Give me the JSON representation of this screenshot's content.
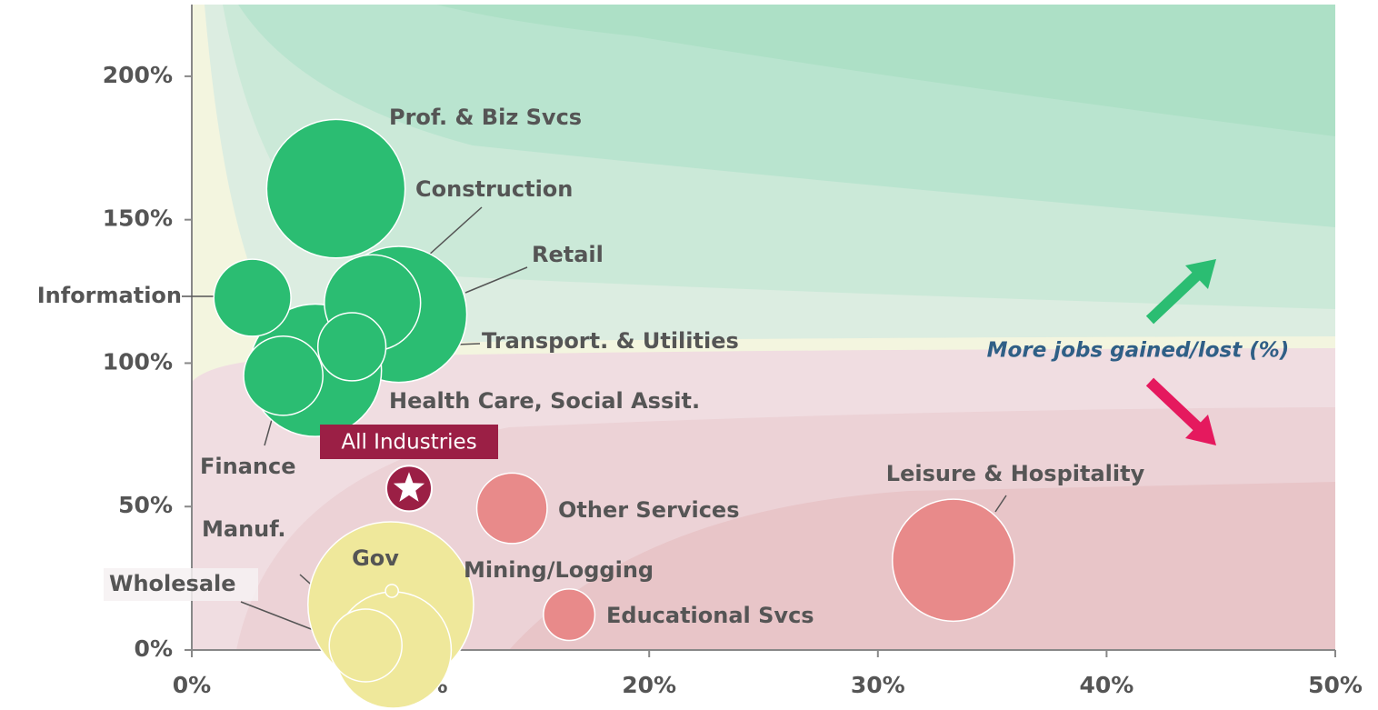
{
  "chart_data": {
    "type": "bubble",
    "xlim": [
      0,
      50
    ],
    "ylim": [
      0,
      225
    ],
    "xticks": [
      {
        "value": 0,
        "label": "0%"
      },
      {
        "value": 10,
        "label": "10%"
      },
      {
        "value": 20,
        "label": "20%"
      },
      {
        "value": 30,
        "label": "30%"
      },
      {
        "value": 40,
        "label": "40%"
      },
      {
        "value": 50,
        "label": "50%"
      }
    ],
    "yticks": [
      {
        "value": 0,
        "label": "0%"
      },
      {
        "value": 50,
        "label": "50%"
      },
      {
        "value": 100,
        "label": "100%"
      },
      {
        "value": 150,
        "label": "150%"
      },
      {
        "value": 200,
        "label": "200%"
      }
    ],
    "annotation": "More jobs gained/lost (%)",
    "points": [
      {
        "name": "Gov",
        "x": 8.7,
        "y": 15.8,
        "size": 83,
        "color": "#efe89b"
      },
      {
        "name": "Prof. & Biz Svcs",
        "x": 6.3,
        "y": 160.8,
        "size": 58,
        "color": "#2bbd72"
      },
      {
        "name": "Retail",
        "x": 9.05,
        "y": 117,
        "size": 56,
        "color": "#2bbd72"
      },
      {
        "name": "Health Care, Social Assit.",
        "x": 5.4,
        "y": 97.5,
        "size": 53,
        "color": "#2bbd72"
      },
      {
        "name": "Leisure & Hospitality",
        "x": 33.3,
        "y": 31.3,
        "size": 45,
        "color": "#e88a8a"
      },
      {
        "name": "Manuf.",
        "x": 8.8,
        "y": 0,
        "size": 41,
        "color": "#efe89b"
      },
      {
        "name": "Construction",
        "x": 7.9,
        "y": 121,
        "size": 28,
        "color": "#2bbd72"
      },
      {
        "name": "Finance",
        "x": 4.0,
        "y": 95.6,
        "size": 19,
        "color": "#2bbd72"
      },
      {
        "name": "Information",
        "x": 2.65,
        "y": 122.8,
        "size": 18,
        "color": "#2bbd72"
      },
      {
        "name": "Wholesale",
        "x": 7.6,
        "y": 1.6,
        "size": 16,
        "color": "#efe89b"
      },
      {
        "name": "Other Services",
        "x": 14.0,
        "y": 49.4,
        "size": 15,
        "color": "#e88a8a"
      },
      {
        "name": "Transport. & Utilities",
        "x": 7.0,
        "y": 105.7,
        "size": 14,
        "color": "#2bbd72"
      },
      {
        "name": "Educational Svcs",
        "x": 16.5,
        "y": 12.3,
        "size": 8,
        "color": "#e88a8a"
      },
      {
        "name": "Mining/Logging",
        "x": 8.75,
        "y": 20.6,
        "size": 0.5,
        "color": "#efe89b"
      }
    ],
    "highlight": {
      "name": "All Industries",
      "x": 9.5,
      "y": 56.3,
      "color": "#9b1f45"
    }
  }
}
